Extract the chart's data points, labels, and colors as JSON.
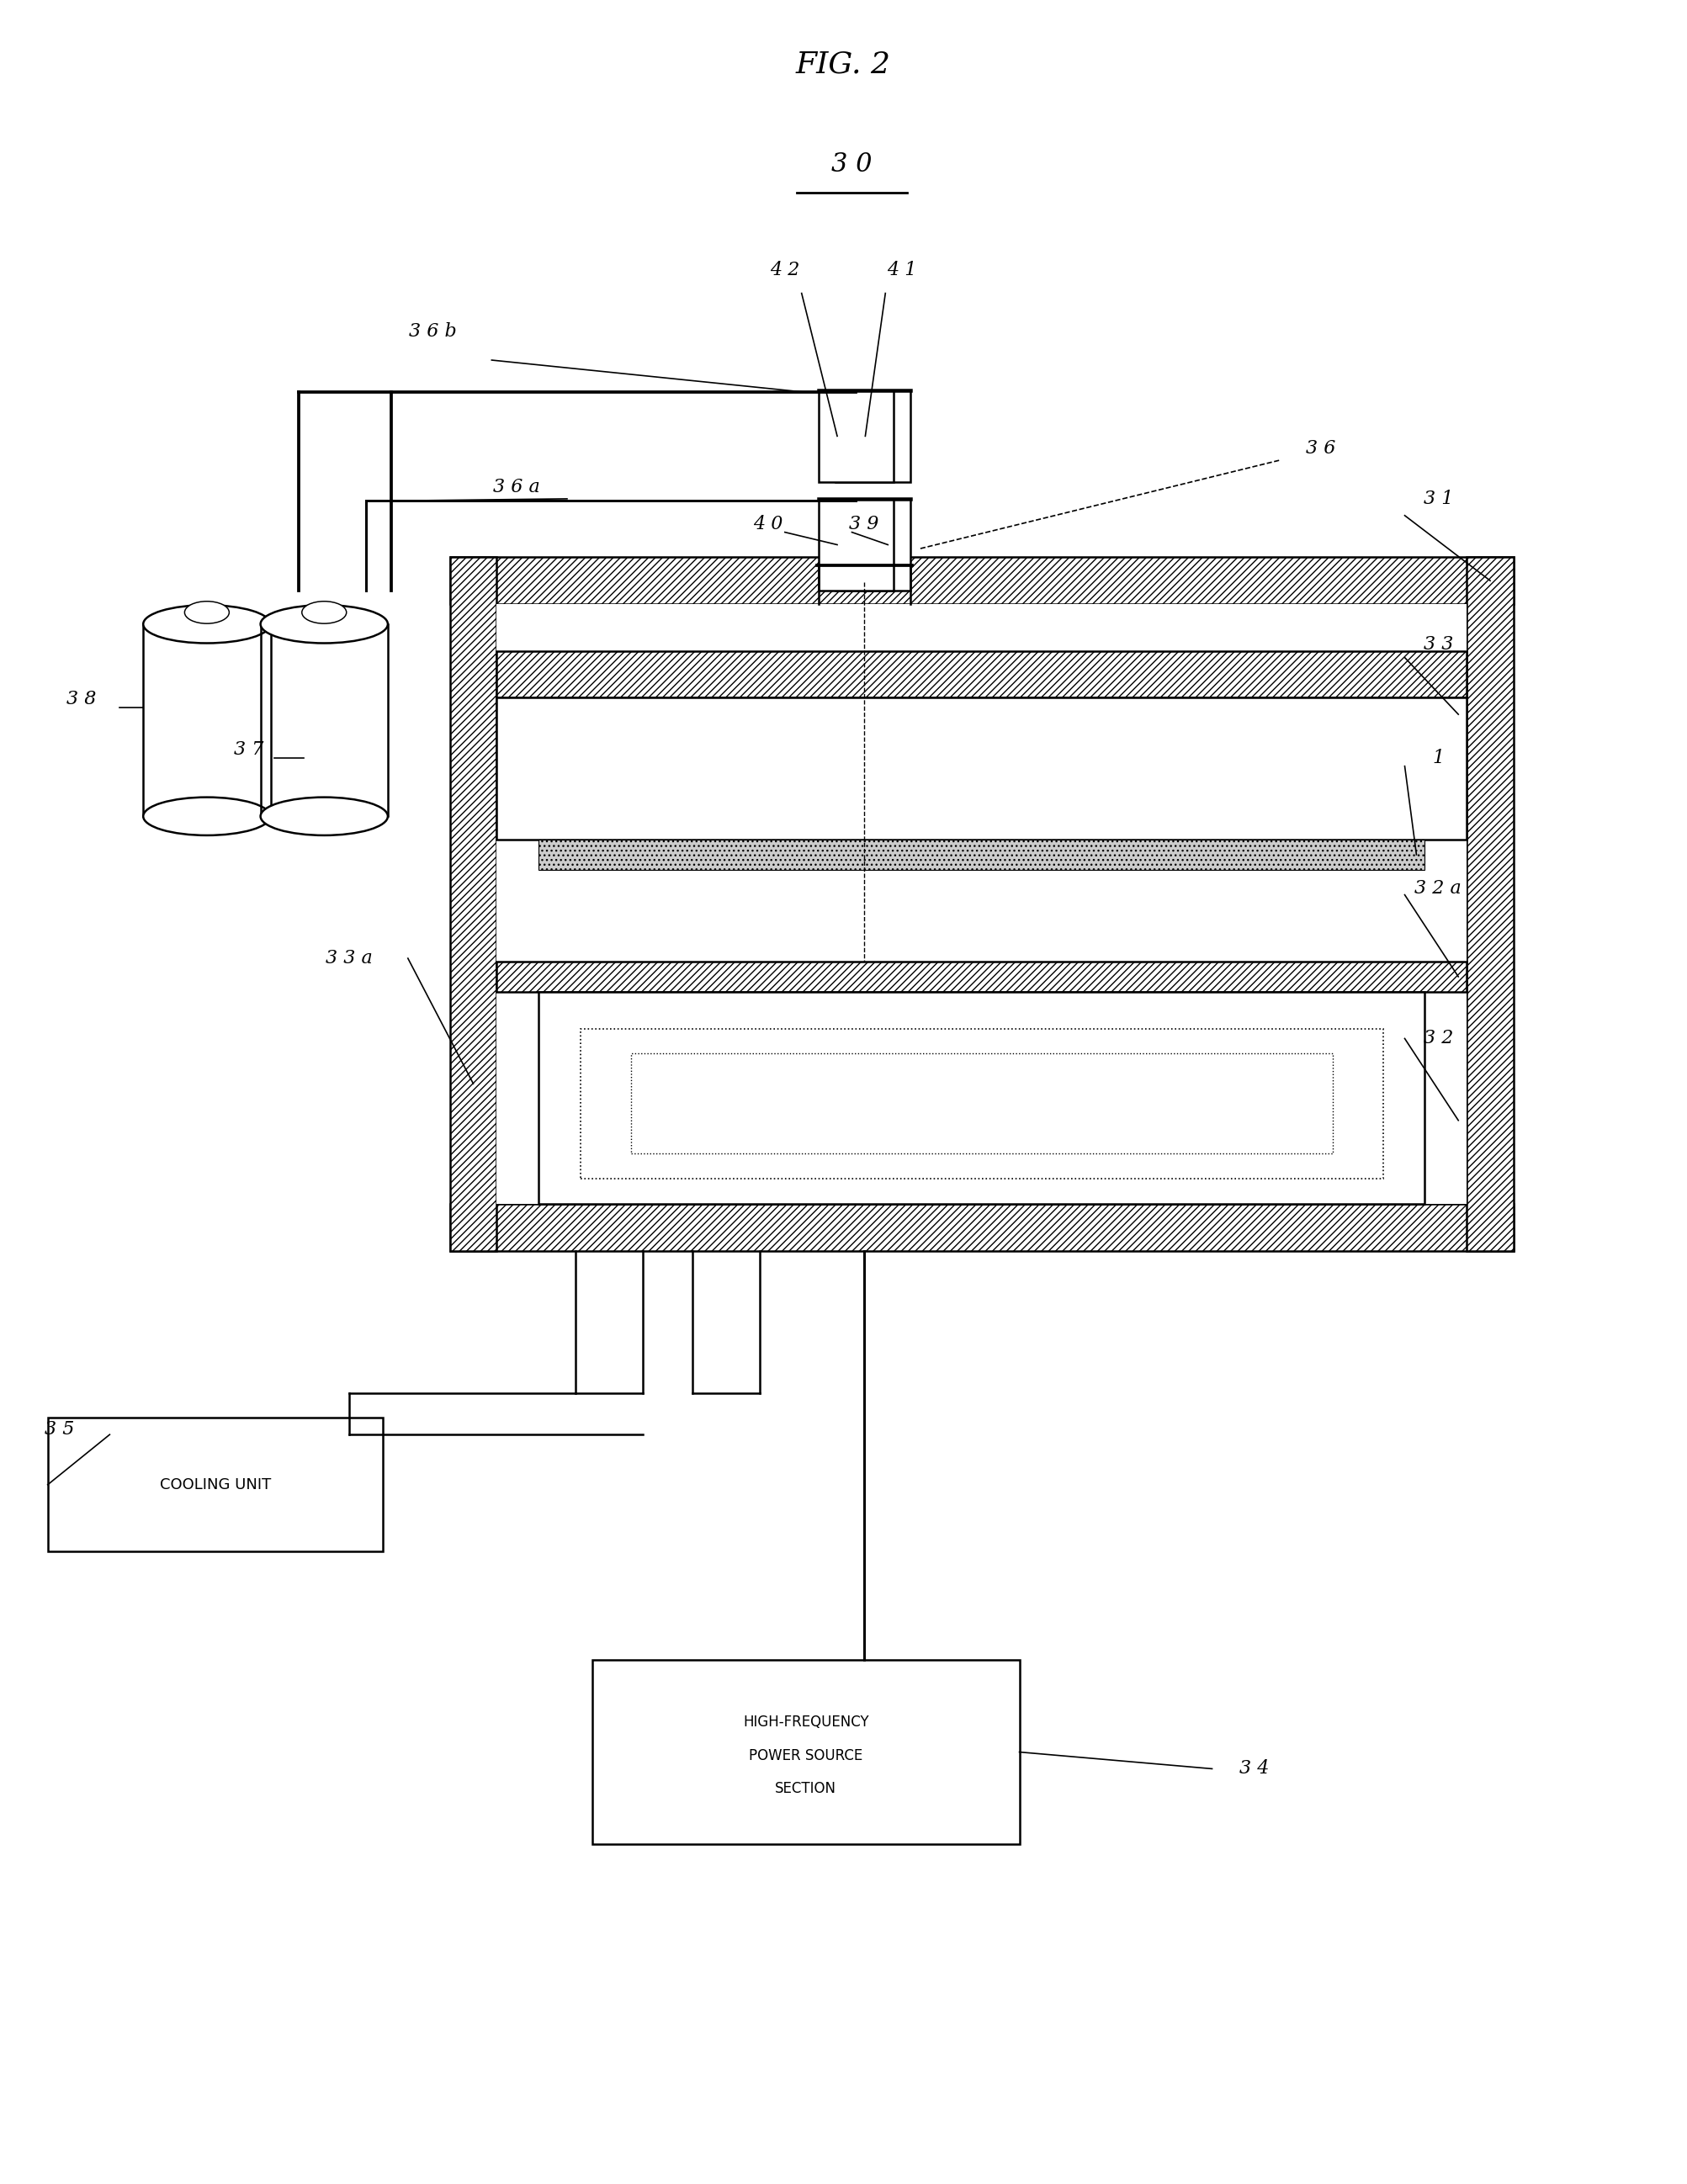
{
  "title": "FIG. 2",
  "label_30": "3 0",
  "bg_color": "#ffffff",
  "fig_width": 20.05,
  "fig_height": 25.96,
  "labels": {
    "36b": "3 6 b",
    "42": "4 2",
    "41": "4 1",
    "36a": "3 6 a",
    "40": "4 0",
    "39": "3 9",
    "36": "3 6",
    "31": "3 1",
    "33": "3 3",
    "1": "1",
    "32a": "3 2 a",
    "33a": "3 3 a",
    "32": "3 2",
    "38": "3 8",
    "37": "3 7",
    "35": "3 5",
    "34": "3 4"
  }
}
